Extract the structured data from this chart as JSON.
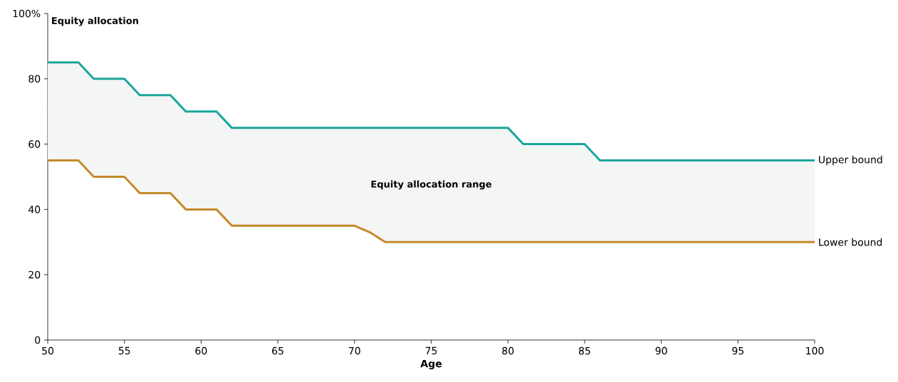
{
  "chart_data": {
    "type": "line",
    "ylabel": "Equity allocation",
    "xlabel": "Age",
    "annotations": [
      "Equity allocation range"
    ],
    "x": [
      50,
      52,
      53,
      55,
      56,
      58,
      59,
      61,
      62,
      70,
      71,
      72,
      80,
      81,
      85,
      86,
      100
    ],
    "series": [
      {
        "name": "Upper bound",
        "color": "#1aa59a",
        "values": [
          85,
          85,
          80,
          80,
          75,
          75,
          70,
          70,
          65,
          65,
          65,
          65,
          65,
          60,
          60,
          55,
          55
        ],
        "lower": [
          55,
          55,
          50,
          50,
          45,
          45,
          40,
          40,
          35,
          35,
          33,
          30,
          30,
          30,
          30,
          30,
          30
        ],
        "upper": [
          85,
          85,
          80,
          80,
          75,
          75,
          70,
          70,
          65,
          65,
          65,
          65,
          65,
          60,
          60,
          55,
          55
        ]
      },
      {
        "name": "Lower bound",
        "color": "#c48a2c",
        "values": [
          55,
          55,
          50,
          50,
          45,
          45,
          40,
          40,
          35,
          35,
          33,
          30,
          30,
          30,
          30,
          30,
          30
        ]
      }
    ],
    "xlim": [
      50,
      100
    ],
    "xticks": [
      50,
      55,
      60,
      65,
      70,
      75,
      80,
      85,
      90,
      95,
      100
    ],
    "ylim": [
      0,
      100
    ],
    "yticks": [
      0,
      20,
      40,
      60,
      80,
      {
        "value": 100,
        "label": "100%"
      }
    ],
    "grid": false,
    "legend": false,
    "marker": "none",
    "line_style": "solid"
  }
}
